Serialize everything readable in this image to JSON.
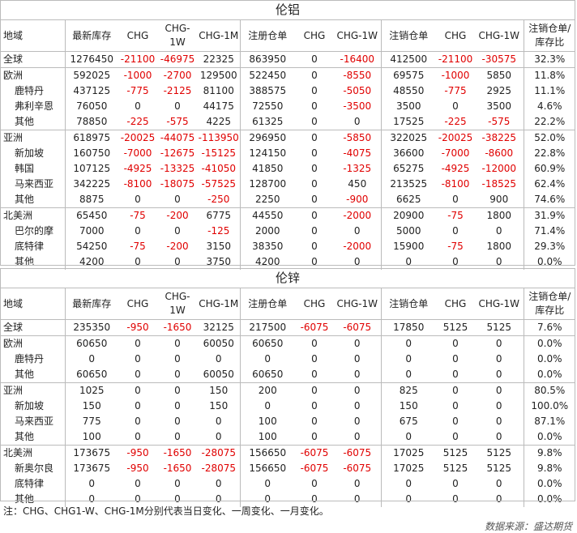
{
  "sections": [
    {
      "title": "伦铝",
      "headers": [
        "地域",
        "最新库存",
        "CHG",
        "CHG-1W",
        "CHG-1M",
        "注册仓单",
        "CHG",
        "CHG-1W",
        "注销仓单",
        "CHG",
        "CHG-1W",
        "注销仓单/库存比"
      ],
      "rows": [
        {
          "name": "全球",
          "indent": false,
          "group_start": true,
          "values": [
            "1276450",
            "-21100",
            "-46975",
            "22325",
            "863950",
            "0",
            "-16400",
            "412500",
            "-21100",
            "-30575",
            "32.3%"
          ]
        },
        {
          "name": "欧洲",
          "indent": false,
          "group_start": true,
          "values": [
            "592025",
            "-1000",
            "-2700",
            "129500",
            "522450",
            "0",
            "-8550",
            "69575",
            "-1000",
            "5850",
            "11.8%"
          ]
        },
        {
          "name": "鹿特丹",
          "indent": true,
          "group_start": false,
          "values": [
            "437125",
            "-775",
            "-2125",
            "81100",
            "388575",
            "0",
            "-5050",
            "48550",
            "-775",
            "2925",
            "11.1%"
          ]
        },
        {
          "name": "弗利辛恩",
          "indent": true,
          "group_start": false,
          "values": [
            "76050",
            "0",
            "0",
            "44175",
            "72550",
            "0",
            "-3500",
            "3500",
            "0",
            "3500",
            "4.6%"
          ]
        },
        {
          "name": "其他",
          "indent": true,
          "group_start": false,
          "values": [
            "78850",
            "-225",
            "-575",
            "4225",
            "61325",
            "0",
            "0",
            "17525",
            "-225",
            "-575",
            "22.2%"
          ]
        },
        {
          "name": "亚洲",
          "indent": false,
          "group_start": true,
          "values": [
            "618975",
            "-20025",
            "-44075",
            "-113950",
            "296950",
            "0",
            "-5850",
            "322025",
            "-20025",
            "-38225",
            "52.0%"
          ]
        },
        {
          "name": "新加坡",
          "indent": true,
          "group_start": false,
          "values": [
            "160750",
            "-7000",
            "-12675",
            "-15125",
            "124150",
            "0",
            "-4075",
            "36600",
            "-7000",
            "-8600",
            "22.8%"
          ]
        },
        {
          "name": "韩国",
          "indent": true,
          "group_start": false,
          "values": [
            "107125",
            "-4925",
            "-13325",
            "-41050",
            "41850",
            "0",
            "-1325",
            "65275",
            "-4925",
            "-12000",
            "60.9%"
          ]
        },
        {
          "name": "马来西亚",
          "indent": true,
          "group_start": false,
          "values": [
            "342225",
            "-8100",
            "-18075",
            "-57525",
            "128700",
            "0",
            "450",
            "213525",
            "-8100",
            "-18525",
            "62.4%"
          ]
        },
        {
          "name": "其他",
          "indent": true,
          "group_start": false,
          "values": [
            "8875",
            "0",
            "0",
            "-250",
            "2250",
            "0",
            "-900",
            "6625",
            "0",
            "900",
            "74.6%"
          ]
        },
        {
          "name": "北美洲",
          "indent": false,
          "group_start": true,
          "values": [
            "65450",
            "-75",
            "-200",
            "6775",
            "44550",
            "0",
            "-2000",
            "20900",
            "-75",
            "1800",
            "31.9%"
          ]
        },
        {
          "name": "巴尔的摩",
          "indent": true,
          "group_start": false,
          "values": [
            "7000",
            "0",
            "0",
            "-125",
            "2000",
            "0",
            "0",
            "5000",
            "0",
            "0",
            "71.4%"
          ]
        },
        {
          "name": "底特律",
          "indent": true,
          "group_start": false,
          "values": [
            "54250",
            "-75",
            "-200",
            "3150",
            "38350",
            "0",
            "-2000",
            "15900",
            "-75",
            "1800",
            "29.3%"
          ]
        },
        {
          "name": "其他",
          "indent": true,
          "group_start": false,
          "values": [
            "4200",
            "0",
            "0",
            "3750",
            "4200",
            "0",
            "0",
            "0",
            "0",
            "0",
            "0.0%"
          ]
        }
      ]
    },
    {
      "title": "伦锌",
      "headers": [
        "地域",
        "最新库存",
        "CHG",
        "CHG-1W",
        "CHG-1M",
        "注册仓单",
        "CHG",
        "CHG-1W",
        "注销仓单",
        "CHG",
        "CHG-1W",
        "注销仓单/库存比"
      ],
      "rows": [
        {
          "name": "全球",
          "indent": false,
          "group_start": true,
          "values": [
            "235350",
            "-950",
            "-1650",
            "32125",
            "217500",
            "-6075",
            "-6075",
            "17850",
            "5125",
            "5125",
            "7.6%"
          ]
        },
        {
          "name": "欧洲",
          "indent": false,
          "group_start": true,
          "values": [
            "60650",
            "0",
            "0",
            "60050",
            "60650",
            "0",
            "0",
            "0",
            "0",
            "0",
            "0.0%"
          ]
        },
        {
          "name": "鹿特丹",
          "indent": true,
          "group_start": false,
          "values": [
            "0",
            "0",
            "0",
            "0",
            "0",
            "0",
            "0",
            "0",
            "0",
            "0",
            "0.0%"
          ]
        },
        {
          "name": "其他",
          "indent": true,
          "group_start": false,
          "values": [
            "60650",
            "0",
            "0",
            "60050",
            "60650",
            "0",
            "0",
            "0",
            "0",
            "0",
            "0.0%"
          ]
        },
        {
          "name": "亚洲",
          "indent": false,
          "group_start": true,
          "values": [
            "1025",
            "0",
            "0",
            "150",
            "200",
            "0",
            "0",
            "825",
            "0",
            "0",
            "80.5%"
          ]
        },
        {
          "name": "新加坡",
          "indent": true,
          "group_start": false,
          "values": [
            "150",
            "0",
            "0",
            "150",
            "0",
            "0",
            "0",
            "150",
            "0",
            "0",
            "100.0%"
          ]
        },
        {
          "name": "马来西亚",
          "indent": true,
          "group_start": false,
          "values": [
            "775",
            "0",
            "0",
            "0",
            "100",
            "0",
            "0",
            "675",
            "0",
            "0",
            "87.1%"
          ]
        },
        {
          "name": "其他",
          "indent": true,
          "group_start": false,
          "values": [
            "100",
            "0",
            "0",
            "0",
            "100",
            "0",
            "0",
            "0",
            "0",
            "0",
            "0.0%"
          ]
        },
        {
          "name": "北美洲",
          "indent": false,
          "group_start": true,
          "values": [
            "173675",
            "-950",
            "-1650",
            "-28075",
            "156650",
            "-6075",
            "-6075",
            "17025",
            "5125",
            "5125",
            "9.8%"
          ]
        },
        {
          "name": "新奥尔良",
          "indent": true,
          "group_start": false,
          "values": [
            "173675",
            "-950",
            "-1650",
            "-28075",
            "156650",
            "-6075",
            "-6075",
            "17025",
            "5125",
            "5125",
            "9.8%"
          ]
        },
        {
          "name": "底特律",
          "indent": true,
          "group_start": false,
          "values": [
            "0",
            "0",
            "0",
            "0",
            "0",
            "0",
            "0",
            "0",
            "0",
            "0",
            "0.0%"
          ]
        },
        {
          "name": "其他",
          "indent": true,
          "group_start": false,
          "values": [
            "0",
            "0",
            "0",
            "0",
            "0",
            "0",
            "0",
            "0",
            "0",
            "0",
            "0.0%"
          ]
        }
      ]
    }
  ],
  "note": "注：CHG、CHG1-W、CHG-1M分别代表当日变化、一周变化、一月变化。",
  "source": "数据来源：盛达期货"
}
